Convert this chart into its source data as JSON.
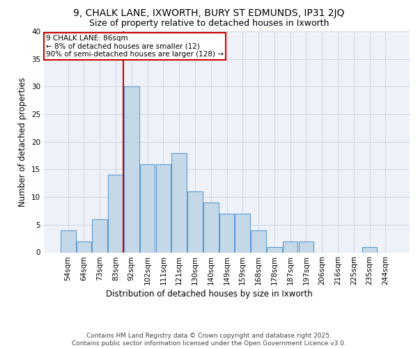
{
  "title1": "9, CHALK LANE, IXWORTH, BURY ST EDMUNDS, IP31 2JQ",
  "title2": "Size of property relative to detached houses in Ixworth",
  "xlabel": "Distribution of detached houses by size in Ixworth",
  "ylabel": "Number of detached properties",
  "categories": [
    "54sqm",
    "64sqm",
    "73sqm",
    "83sqm",
    "92sqm",
    "102sqm",
    "111sqm",
    "121sqm",
    "130sqm",
    "140sqm",
    "149sqm",
    "159sqm",
    "168sqm",
    "178sqm",
    "187sqm",
    "197sqm",
    "206sqm",
    "216sqm",
    "225sqm",
    "235sqm",
    "244sqm"
  ],
  "values": [
    4,
    2,
    6,
    14,
    30,
    16,
    16,
    18,
    11,
    9,
    7,
    7,
    4,
    1,
    2,
    2,
    0,
    0,
    0,
    1,
    0
  ],
  "bar_color": "#c5d8e8",
  "bar_edge_color": "#5b9bd5",
  "bar_edge_width": 0.8,
  "red_line_x": 3.5,
  "annotation_line1": "9 CHALK LANE: 86sqm",
  "annotation_line2": "← 8% of detached houses are smaller (12)",
  "annotation_line3": "90% of semi-detached houses are larger (128) →",
  "annotation_box_color": "#ffffff",
  "annotation_box_edge": "#cc0000",
  "red_line_color": "#cc0000",
  "grid_color": "#d0d8e8",
  "background_color": "#eef2f8",
  "ylim": [
    0,
    40
  ],
  "yticks": [
    0,
    5,
    10,
    15,
    20,
    25,
    30,
    35,
    40
  ],
  "footer": "Contains HM Land Registry data © Crown copyright and database right 2025.\nContains public sector information licensed under the Open Government Licence v3.0.",
  "title_fontsize": 10,
  "subtitle_fontsize": 9,
  "tick_fontsize": 7.5,
  "axis_label_fontsize": 8.5,
  "footer_fontsize": 6.5,
  "annotation_fontsize": 7.5
}
